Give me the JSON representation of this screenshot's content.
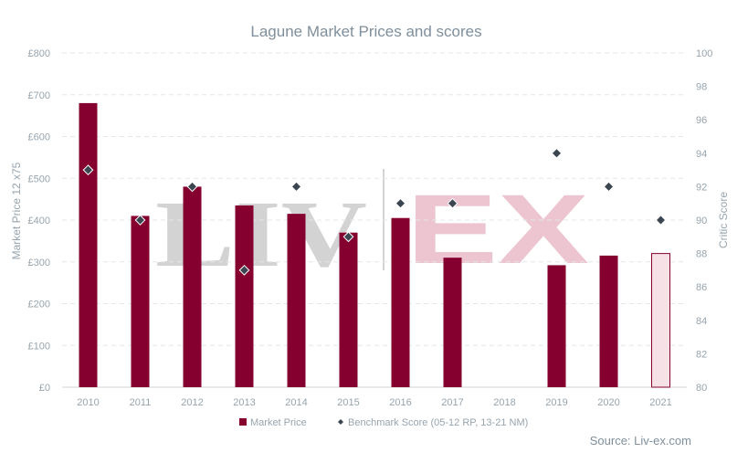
{
  "chart_data": {
    "type": "bar",
    "title": "Lagune Market Prices and scores",
    "categories": [
      "2010",
      "2011",
      "2012",
      "2013",
      "2014",
      "2015",
      "2016",
      "2017",
      "2018",
      "2019",
      "2020",
      "2021"
    ],
    "series": [
      {
        "name": "Market Price",
        "kind": "bar",
        "axis": "left",
        "color": "#86002f",
        "values": [
          680,
          410,
          480,
          435,
          415,
          370,
          405,
          310,
          null,
          292,
          315,
          320
        ],
        "light_categories": [
          "2021"
        ],
        "light_fill": "#f5e1e6"
      },
      {
        "name": "Benchmark Score (05-12 RP, 13-21 NM)",
        "kind": "scatter",
        "axis": "right",
        "color": "#3c4650",
        "values": [
          93,
          90,
          92,
          87,
          92,
          89,
          91,
          91,
          null,
          94,
          92,
          90
        ]
      }
    ],
    "ylabel": "Market Price 12 x75",
    "ylabel_right": "Critic Score",
    "ylim": [
      0,
      800
    ],
    "ylim_right": [
      80,
      100
    ],
    "yticks": [
      "£0",
      "£100",
      "£200",
      "£300",
      "£400",
      "£500",
      "£600",
      "£700",
      "£800"
    ],
    "yticks_right": [
      "80",
      "82",
      "84",
      "86",
      "88",
      "90",
      "92",
      "94",
      "96",
      "98",
      "100"
    ],
    "grid": true,
    "legend_position": "bottom"
  },
  "watermark": {
    "left": "LIV",
    "right": "EX",
    "left_color": "#cfcfcf",
    "right_color": "#ebbfcb"
  },
  "source": "Source: Liv-ex.com"
}
